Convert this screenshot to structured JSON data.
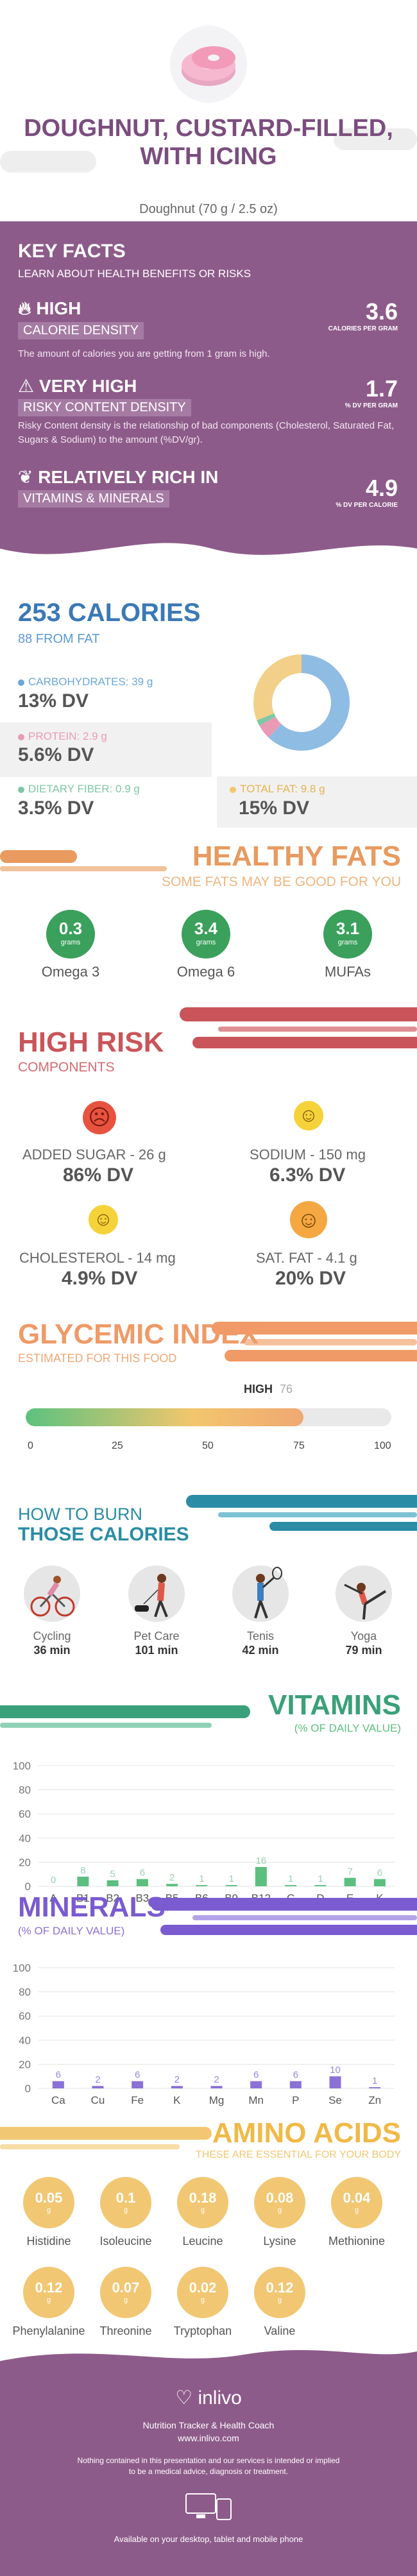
{
  "header": {
    "title": "DOUGHNUT, CUSTARD-FILLED, WITH ICING",
    "serving": "Doughnut (70 g / 2.5 oz)"
  },
  "key_facts": {
    "title": "KEY FACTS",
    "subtitle": "LEARN ABOUT HEALTH BENEFITS OR RISKS",
    "items": [
      {
        "level": "HIGH",
        "band": "CALORIE DENSITY",
        "value": "3.6",
        "unit": "CALORIES PER GRAM",
        "desc": "The amount of calories you are getting from 1 gram is high."
      },
      {
        "level": "VERY HIGH",
        "band": "RISKY CONTENT DENSITY",
        "value": "1.7",
        "unit": "% DV PER GRAM",
        "desc": "Risky Content density is the relationship of bad components (Cholesterol, Saturated Fat, Sugars & Sodium) to the amount (%DV/gr)."
      },
      {
        "level": "RELATIVELY RICH  IN",
        "band": "VITAMINS & MINERALS",
        "value": "4.9",
        "unit": "% DV PER CALORIE",
        "desc": ""
      }
    ]
  },
  "calories": {
    "title": "253 CALORIES",
    "from_fat": "88 FROM FAT",
    "nutrients": [
      {
        "label": "CARBOHYDRATES: 39 g",
        "dv": "13% DV",
        "color": "#6aa6d8"
      },
      {
        "label": "PROTEIN: 2.9 g",
        "dv": "5.6% DV",
        "color": "#e99bb6"
      },
      {
        "label": "DIETARY FIBER: 0.9 g",
        "dv": "3.5% DV",
        "color": "#7fc8a5"
      },
      {
        "label": "TOTAL FAT: 9.8 g",
        "dv": "15% DV",
        "color": "#f2c76d"
      }
    ],
    "donut": [
      {
        "name": "carbs",
        "value": 62,
        "color": "#8fbce3"
      },
      {
        "name": "protein",
        "value": 5,
        "color": "#e99bb6"
      },
      {
        "name": "fiber",
        "value": 2,
        "color": "#7fc8a5"
      },
      {
        "name": "fat",
        "value": 31,
        "color": "#f2d089"
      }
    ]
  },
  "healthy_fats": {
    "title": "HEALTHY FATS",
    "subtitle": "SOME FATS MAY BE GOOD FOR YOU",
    "items": [
      {
        "value": "0.3",
        "unit": "grams",
        "name": "Omega 3"
      },
      {
        "value": "3.4",
        "unit": "grams",
        "name": "Omega 6"
      },
      {
        "value": "3.1",
        "unit": "grams",
        "name": "MUFAs"
      }
    ]
  },
  "high_risk": {
    "title": "HIGH RISK",
    "subtitle": "COMPONENTS",
    "items": [
      {
        "name": "ADDED SUGAR - 26 g",
        "dv": "86% DV",
        "face": "☹",
        "color": "#e8533f"
      },
      {
        "name": "SODIUM - 150 mg",
        "dv": "6.3% DV",
        "face": "☺",
        "color": "#f6d23a"
      },
      {
        "name": "CHOLESTEROL - 14 mg",
        "dv": "4.9% DV",
        "face": "☺",
        "color": "#f6d23a"
      },
      {
        "name": "SAT. FAT - 4.1 g",
        "dv": "20% DV",
        "face": "☺",
        "color": "#f5a742"
      }
    ]
  },
  "glycemic": {
    "title": "GLYCEMIC INDEX",
    "subtitle": "ESTIMATED FOR THIS FOOD",
    "level": "HIGH",
    "value": 76,
    "value_text": "76",
    "ticks": [
      "0",
      "25",
      "50",
      "75",
      "100"
    ]
  },
  "burn": {
    "title_line1": "HOW TO BURN",
    "title_line2": "THOSE CALORIES",
    "activities": [
      {
        "name": "Cycling",
        "time": "36 min",
        "icon": "cycling-icon"
      },
      {
        "name": "Pet Care",
        "time": "101 min",
        "icon": "pet-care-icon"
      },
      {
        "name": "Tenis",
        "time": "42 min",
        "icon": "tennis-icon"
      },
      {
        "name": "Yoga",
        "time": "79 min",
        "icon": "yoga-icon"
      }
    ]
  },
  "vitamins": {
    "title": "VITAMINS",
    "subtitle": "(% OF DAILY VALUE)",
    "chart_data": {
      "type": "bar",
      "categories": [
        "A",
        "B1",
        "B2",
        "B3",
        "B5",
        "B6",
        "B9",
        "B12",
        "C",
        "D",
        "E",
        "K"
      ],
      "values": [
        0,
        8,
        5,
        6,
        2,
        1,
        1,
        16,
        1,
        1,
        7,
        6
      ],
      "labels": [
        "0",
        "8",
        "5",
        "6",
        "2",
        "1",
        "1",
        "16",
        "1",
        "1",
        "7",
        "6"
      ],
      "yticks": [
        "100",
        "80",
        "60",
        "40",
        "20",
        "0"
      ],
      "ylim": [
        0,
        100
      ],
      "color": "#5cbf7f"
    }
  },
  "minerals": {
    "title": "MINERALS",
    "subtitle": "(% OF DAILY VALUE)",
    "chart_data": {
      "type": "bar",
      "categories": [
        "Ca",
        "Cu",
        "Fe",
        "K",
        "Mg",
        "Mn",
        "P",
        "Se",
        "Zn"
      ],
      "values": [
        6,
        2,
        6,
        2,
        2,
        6,
        6,
        10,
        1
      ],
      "labels": [
        "6",
        "2",
        "6",
        "2",
        "2",
        "6",
        "6",
        "10",
        "1"
      ],
      "yticks": [
        "100",
        "80",
        "60",
        "40",
        "20",
        "0"
      ],
      "ylim": [
        0,
        100
      ],
      "color": "#8a71d6"
    }
  },
  "amino": {
    "title": "AMINO ACIDS",
    "subtitle": "THESE ARE ESSENTIAL FOR YOUR BODY",
    "items": [
      {
        "value": "0.05",
        "unit": "g",
        "name": "Histidine"
      },
      {
        "value": "0.1",
        "unit": "g",
        "name": "Isoleucine"
      },
      {
        "value": "0.18",
        "unit": "g",
        "name": "Leucine"
      },
      {
        "value": "0.08",
        "unit": "g",
        "name": "Lysine"
      },
      {
        "value": "0.04",
        "unit": "g",
        "name": "Methionine"
      },
      {
        "value": "0.12",
        "unit": "g",
        "name": "Phenylalanine"
      },
      {
        "value": "0.07",
        "unit": "g",
        "name": "Threonine"
      },
      {
        "value": "0.02",
        "unit": "g",
        "name": "Tryptophan"
      },
      {
        "value": "0.12",
        "unit": "g",
        "name": "Valine"
      }
    ]
  },
  "footer": {
    "brand": "inlivo",
    "tagline": "Nutrition Tracker & Health Coach",
    "site": "www.inlivo.com",
    "disclaimer1": "Nothing contained in this presentation and our services is intended or implied",
    "disclaimer2": "to be a medical advice, diagnosis or treatment.",
    "available": "Available on your desktop, tablet and mobile phone"
  }
}
